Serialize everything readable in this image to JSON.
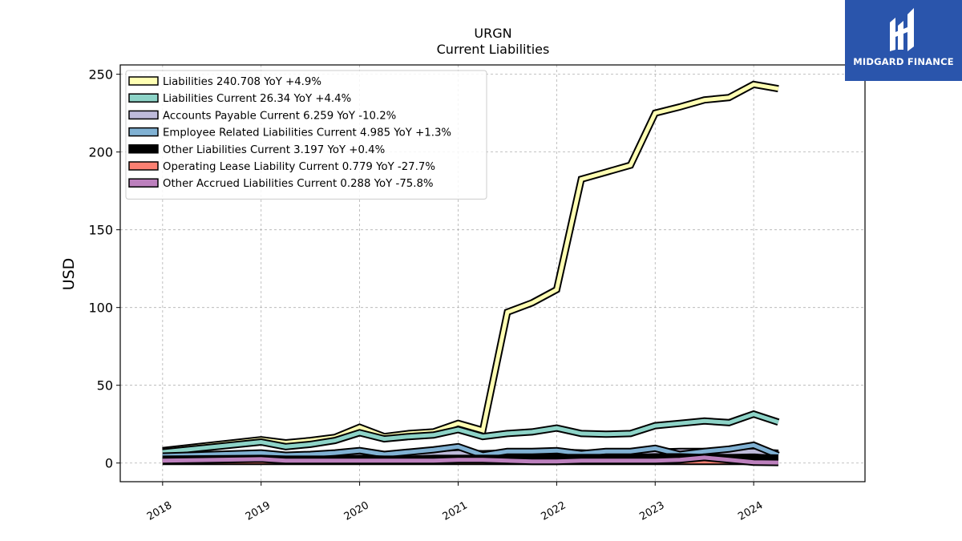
{
  "chart_data": {
    "type": "line",
    "title": "URGN",
    "subtitle": "Current  Liabilities",
    "ylabel": "USD",
    "xlabel": "",
    "ylim": [
      -12,
      256
    ],
    "xlim": [
      2017.57,
      2025.13
    ],
    "yticks": [
      0,
      50,
      100,
      150,
      200,
      250
    ],
    "xticks": [
      2018,
      2019,
      2020,
      2021,
      2022,
      2023,
      2024
    ],
    "xtick_labels": [
      "2018",
      "2019",
      "2020",
      "2021",
      "2022",
      "2023",
      "2024"
    ],
    "grid": true,
    "legend_position": "top-left",
    "x": [
      2018.0,
      2019.0,
      2019.25,
      2019.5,
      2019.75,
      2020.0,
      2020.25,
      2020.5,
      2020.75,
      2021.0,
      2021.25,
      2021.5,
      2021.75,
      2022.0,
      2022.25,
      2022.5,
      2022.75,
      2023.0,
      2023.25,
      2023.5,
      2023.75,
      2024.0,
      2024.25
    ],
    "series": [
      {
        "name": "Liabilities",
        "legend": "Liabilities  240.708 YoY +4.9%",
        "color": "#ffffb3",
        "values": [
          8,
          15,
          13,
          14.5,
          16.5,
          23,
          17,
          19,
          20,
          25.5,
          21,
          97,
          103,
          111.5,
          182.5,
          187,
          191.5,
          225,
          229,
          233.5,
          235,
          243.5,
          240.7
        ]
      },
      {
        "name": "Liabilities Current",
        "legend": "Liabilities Current  26.34 YoY +4.4%",
        "color": "#8dd3c7",
        "values": [
          7,
          13.5,
          10.5,
          12,
          14.5,
          19.5,
          15.5,
          17,
          18,
          21.5,
          17,
          19,
          20,
          22.5,
          19,
          18.5,
          19,
          24,
          25.5,
          27,
          26,
          31.5,
          26.3
        ]
      },
      {
        "name": "Accounts Payable Current",
        "legend": "Accounts Payable Current  6.259 YoY -10.2%",
        "color": "#bebada",
        "values": [
          3.5,
          5,
          4,
          4.5,
          5,
          6,
          5,
          5.5,
          5.5,
          6.5,
          6,
          6.5,
          6.5,
          7,
          6.5,
          6,
          6.5,
          7,
          7.5,
          7.5,
          7,
          7.5,
          6.3
        ]
      },
      {
        "name": "Employee Related Liabilities Current",
        "legend": "Employee Related Liabilities Current  4.985 YoY +1.3%",
        "color": "#80b1d3",
        "values": [
          4.5,
          6.5,
          5,
          5.5,
          6.5,
          8,
          5.5,
          7,
          8.5,
          10.5,
          5,
          7.5,
          7.5,
          8,
          6,
          7.5,
          7.5,
          9.5,
          5.5,
          7.5,
          9,
          11.5,
          5
        ]
      },
      {
        "name": "Other Liabilities Current",
        "legend": "Other Liabilities Current  3.197 YoY +0.4%",
        "color": "#000000",
        "values": [
          2.5,
          3,
          2.5,
          2.5,
          2.5,
          3,
          2.5,
          2.5,
          3,
          3,
          3,
          3,
          3,
          3.5,
          3.5,
          3.5,
          3.5,
          4,
          4,
          3.5,
          3.5,
          3.5,
          3.2
        ]
      },
      {
        "name": "Operating Lease Liability Current",
        "legend": "Operating Lease Liability Current  0.779 YoY -27.7%",
        "color": "#fb8072",
        "values": [
          1,
          1,
          1,
          1,
          1,
          1,
          1,
          1,
          1,
          1,
          1,
          1,
          1,
          1,
          1,
          1,
          1,
          1,
          1,
          1,
          1,
          1,
          0.8
        ]
      },
      {
        "name": "Other Accrued Liabilities Current",
        "legend": "Other Accrued Liabilities Current  0.288 YoY -75.8%",
        "color": "#bc80bd",
        "values": [
          1.5,
          2.5,
          1.5,
          1.5,
          1.5,
          1.5,
          1.5,
          1.5,
          1.5,
          2,
          2,
          1.5,
          1,
          1,
          1.5,
          1.5,
          1.5,
          1.5,
          2,
          3.5,
          2,
          0.5,
          0.3
        ]
      }
    ]
  },
  "watermark": {
    "text": "MIDGARD FINANCE",
    "background": "#2a55ac"
  }
}
